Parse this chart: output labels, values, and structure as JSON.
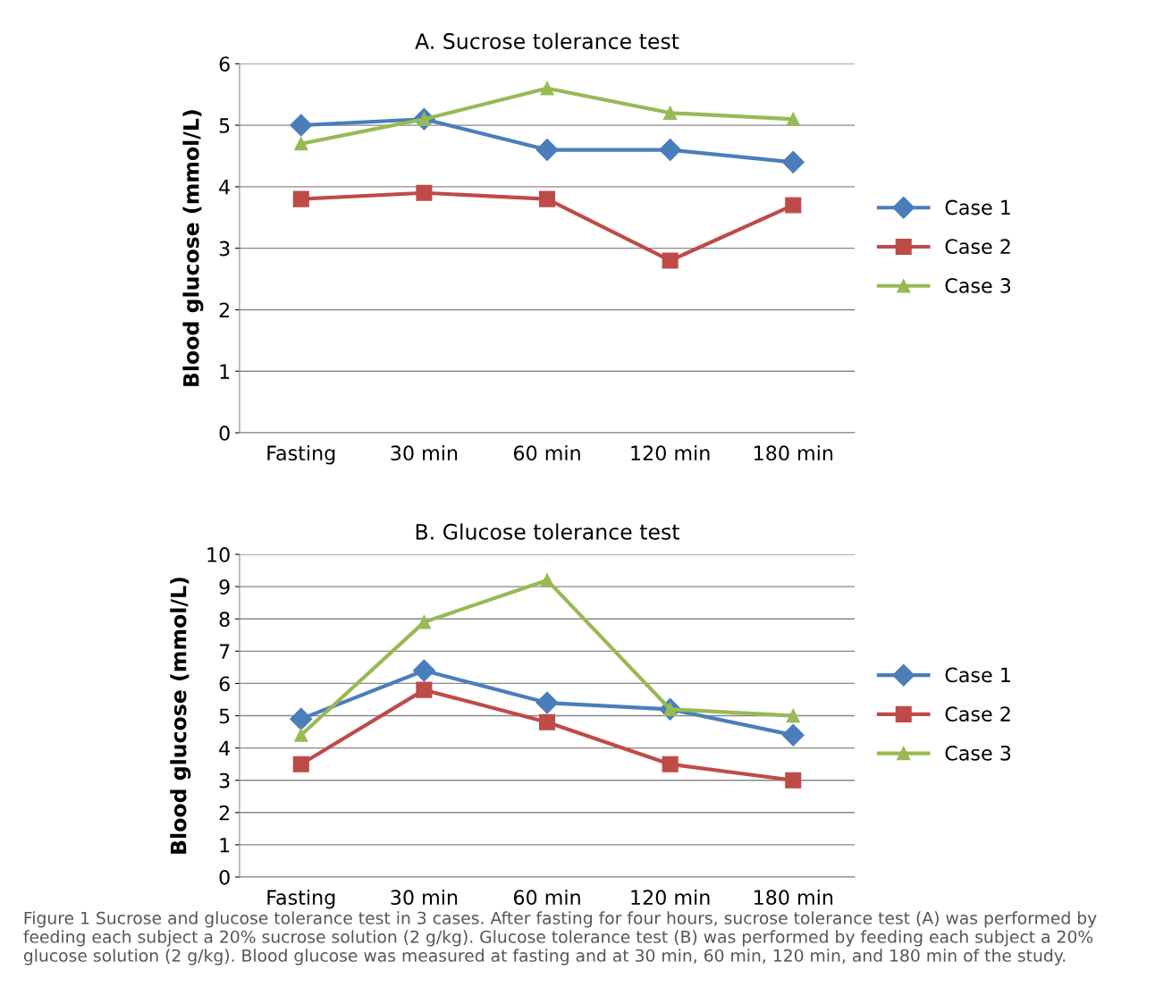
{
  "chart_data": [
    {
      "type": "line",
      "title": "A. Sucrose tolerance test",
      "ylabel": "Blood glucose (mmol/L)",
      "categories": [
        "Fasting",
        "30 min",
        "60 min",
        "120 min",
        "180 min"
      ],
      "series": [
        {
          "name": "Case 1",
          "color": "#4a7ebb",
          "marker": "diamond",
          "values": [
            5.0,
            5.1,
            4.6,
            4.6,
            4.4
          ]
        },
        {
          "name": "Case 2",
          "color": "#be4b48",
          "marker": "square",
          "values": [
            3.8,
            3.9,
            3.8,
            2.8,
            3.7
          ]
        },
        {
          "name": "Case 3",
          "color": "#98b954",
          "marker": "triangle",
          "values": [
            4.7,
            5.1,
            5.6,
            5.2,
            5.1
          ]
        }
      ],
      "ylim": [
        0,
        6
      ],
      "yticks": [
        0,
        1,
        2,
        3,
        4,
        5,
        6
      ],
      "grid": "y",
      "legend": "right"
    },
    {
      "type": "line",
      "title": "B. Glucose tolerance test",
      "ylabel": "Blood glucose (mmol/L)",
      "categories": [
        "Fasting",
        "30 min",
        "60 min",
        "120 min",
        "180 min"
      ],
      "series": [
        {
          "name": "Case 1",
          "color": "#4a7ebb",
          "marker": "diamond",
          "values": [
            4.9,
            6.4,
            5.4,
            5.2,
            4.4
          ]
        },
        {
          "name": "Case 2",
          "color": "#be4b48",
          "marker": "square",
          "values": [
            3.5,
            5.8,
            4.8,
            3.5,
            3.0
          ]
        },
        {
          "name": "Case 3",
          "color": "#98b954",
          "marker": "triangle",
          "values": [
            4.4,
            7.9,
            9.2,
            5.2,
            5.0
          ]
        }
      ],
      "ylim": [
        0,
        10
      ],
      "yticks": [
        0,
        1,
        2,
        3,
        4,
        5,
        6,
        7,
        8,
        9,
        10
      ],
      "grid": "y",
      "legend": "right",
      "annotations": [
        "Figure 1 Sucrose and glucose tolerance test in 3 cases. After fasting for four hours, sucrose tolerance test (A) was performed by feeding each subject a 20% sucrose solution (2 g/kg). Glucose tolerance test (B) was performed by feeding each subject a 20% glucose solution (2 g/kg). Blood glucose was measured at fasting and at 30 min, 60 min, 120 min, and 180 min of the study."
      ]
    }
  ]
}
